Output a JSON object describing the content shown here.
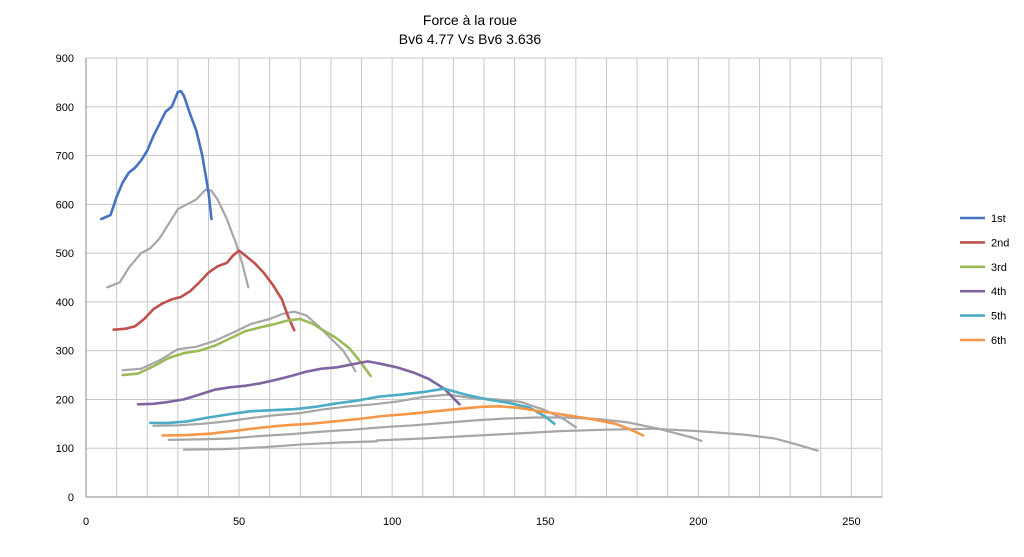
{
  "chart_data": {
    "type": "line",
    "title": "Force à la roue",
    "subtitle": "Bv6 4.77 Vs Bv6 3.636",
    "xlim": [
      0,
      260
    ],
    "ylim": [
      0,
      900
    ],
    "x_ticks": [
      0,
      50,
      100,
      150,
      200,
      250
    ],
    "y_ticks": [
      0,
      100,
      200,
      300,
      400,
      500,
      600,
      700,
      800,
      900
    ],
    "x_minor_step": 10,
    "grid": true,
    "legend_position": "right",
    "series": [
      {
        "name": "1st",
        "color": "#4472c4",
        "x": [
          5,
          8,
          10,
          12,
          14,
          16,
          18,
          20,
          22,
          24,
          26,
          28,
          29,
          30,
          31,
          32,
          34,
          36,
          38,
          40,
          41
        ],
        "y": [
          570,
          578,
          615,
          645,
          665,
          675,
          690,
          710,
          740,
          765,
          790,
          800,
          815,
          830,
          832,
          822,
          785,
          752,
          700,
          625,
          570
        ]
      },
      {
        "name": "2nd",
        "color": "#c0504d",
        "x": [
          9,
          13,
          16,
          19,
          22,
          25,
          28,
          31,
          34,
          37,
          40,
          43,
          46,
          48,
          50,
          52,
          55,
          58,
          61,
          64,
          66,
          68
        ],
        "y": [
          343,
          345,
          350,
          365,
          385,
          397,
          405,
          410,
          422,
          440,
          460,
          473,
          480,
          495,
          505,
          495,
          480,
          460,
          435,
          405,
          370,
          342
        ]
      },
      {
        "name": "3rd",
        "color": "#9bbb59",
        "x": [
          12,
          17,
          22,
          27,
          32,
          37,
          42,
          47,
          52,
          57,
          62,
          66,
          70,
          74,
          78,
          82,
          86,
          89,
          91,
          93
        ],
        "y": [
          250,
          253,
          268,
          285,
          295,
          300,
          310,
          325,
          340,
          348,
          355,
          362,
          365,
          355,
          340,
          325,
          305,
          282,
          265,
          248
        ]
      },
      {
        "name": "4th",
        "color": "#8064a2",
        "x": [
          17,
          22,
          27,
          32,
          37,
          42,
          47,
          52,
          57,
          62,
          67,
          72,
          77,
          82,
          87,
          92,
          97,
          102,
          107,
          112,
          117,
          122
        ],
        "y": [
          190,
          191,
          195,
          200,
          210,
          220,
          225,
          228,
          233,
          240,
          248,
          257,
          263,
          266,
          272,
          278,
          272,
          265,
          255,
          242,
          222,
          190
        ]
      },
      {
        "name": "5th",
        "color": "#4bacc6",
        "x": [
          21,
          27,
          33,
          40,
          47,
          54,
          61,
          68,
          75,
          82,
          89,
          96,
          103,
          110,
          117,
          124,
          131,
          138,
          145,
          150,
          153
        ],
        "y": [
          152,
          152,
          155,
          163,
          170,
          176,
          178,
          180,
          185,
          192,
          198,
          206,
          210,
          215,
          222,
          210,
          200,
          193,
          183,
          165,
          150
        ]
      },
      {
        "name": "6th",
        "color": "#f79646",
        "x": [
          25,
          33,
          41,
          49,
          57,
          65,
          73,
          81,
          89,
          97,
          105,
          113,
          121,
          129,
          135,
          141,
          149,
          157,
          165,
          173,
          178,
          182
        ],
        "y": [
          126,
          127,
          130,
          136,
          142,
          147,
          150,
          155,
          160,
          166,
          170,
          175,
          180,
          185,
          186,
          183,
          175,
          168,
          160,
          150,
          138,
          126
        ]
      },
      {
        "color": "#a6a6a6",
        "x": [
          7,
          11,
          14,
          18,
          21,
          24,
          27,
          30,
          33,
          36,
          39,
          41,
          43,
          46,
          49,
          51,
          53
        ],
        "y": [
          430,
          440,
          470,
          500,
          510,
          530,
          560,
          590,
          600,
          610,
          630,
          628,
          610,
          570,
          520,
          480,
          430
        ]
      },
      {
        "color": "#a6a6a6",
        "x": [
          12,
          18,
          24,
          30,
          36,
          42,
          48,
          54,
          60,
          64,
          68,
          72,
          76,
          80,
          84,
          86,
          88
        ],
        "y": [
          260,
          263,
          280,
          303,
          308,
          320,
          337,
          355,
          365,
          375,
          380,
          372,
          350,
          325,
          300,
          280,
          258
        ]
      },
      {
        "color": "#a6a6a6",
        "x": [
          22,
          30,
          38,
          46,
          54,
          62,
          70,
          78,
          86,
          94,
          102,
          110,
          118,
          126,
          134,
          142,
          150,
          156,
          160
        ],
        "y": [
          146,
          147,
          150,
          155,
          162,
          168,
          172,
          180,
          186,
          190,
          196,
          205,
          210,
          203,
          200,
          195,
          178,
          160,
          143
        ]
      },
      {
        "color": "#a6a6a6",
        "x": [
          27,
          37,
          47,
          57,
          67,
          77,
          87,
          97,
          107,
          117,
          127,
          137,
          147,
          157,
          167,
          177,
          187,
          193,
          198,
          201
        ],
        "y": [
          117,
          118,
          120,
          125,
          129,
          134,
          138,
          143,
          147,
          152,
          157,
          161,
          163,
          163,
          160,
          153,
          140,
          130,
          122,
          115
        ]
      },
      {
        "color": "#a6a6a6",
        "x": [
          32,
          45,
          58,
          71,
          84,
          95
        ],
        "y": [
          97,
          98,
          102,
          108,
          112,
          114
        ]
      },
      {
        "color": "#a6a6a6",
        "x": [
          95,
          110,
          125,
          140,
          155,
          170,
          185,
          200,
          215,
          225,
          232,
          239
        ],
        "y": [
          116,
          120,
          125,
          130,
          135,
          138,
          140,
          135,
          128,
          120,
          108,
          95
        ]
      }
    ]
  }
}
